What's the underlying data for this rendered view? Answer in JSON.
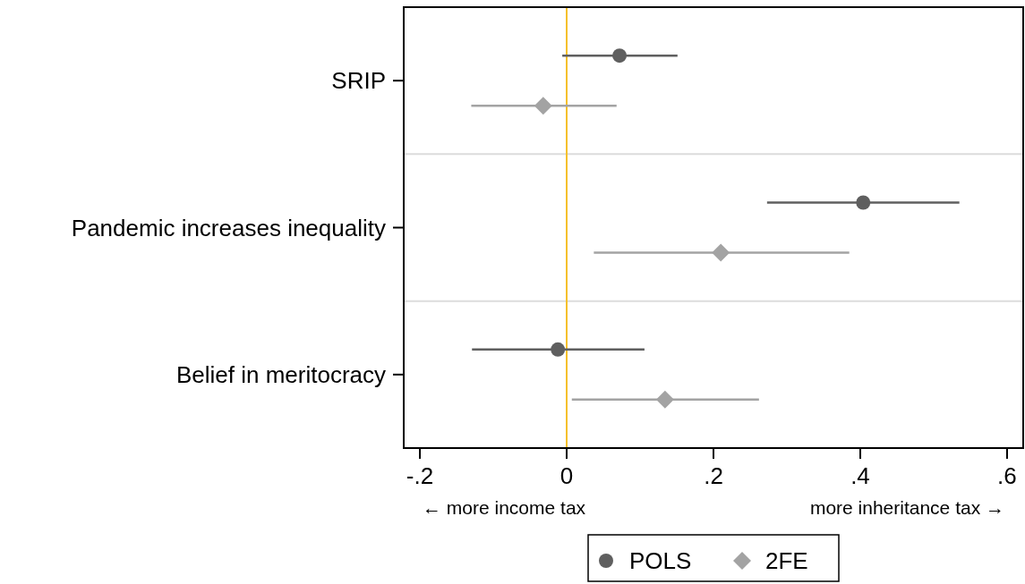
{
  "chart_data": {
    "type": "scatter",
    "orientation": "horizontal",
    "categories": [
      "SRIP",
      "Pandemic increases inequality",
      "Belief in meritocracy"
    ],
    "series": [
      {
        "name": "POLS",
        "color": "#5f5f5f",
        "marker": "circle",
        "values": [
          0.072,
          0.404,
          -0.012
        ],
        "errors": [
          [
            -0.006,
            0.151
          ],
          [
            0.273,
            0.535
          ],
          [
            -0.129,
            0.106
          ]
        ]
      },
      {
        "name": "2FE",
        "color": "#a3a3a3",
        "marker": "diamond",
        "values": [
          -0.032,
          0.21,
          0.134
        ],
        "errors": [
          [
            -0.13,
            0.068
          ],
          [
            0.037,
            0.385
          ],
          [
            0.007,
            0.262
          ]
        ]
      }
    ],
    "xlim": [
      -0.222,
      0.622
    ],
    "xticks": [
      {
        "value": -0.2,
        "label": "-.2"
      },
      0,
      {
        "value": 0.2,
        "label": ".2"
      },
      {
        "value": 0.4,
        "label": ".4"
      },
      {
        "value": 0.6,
        "label": ".6"
      }
    ],
    "ref_lines": [
      {
        "axis": "x",
        "value": 0,
        "color": "#f5c02a"
      }
    ],
    "annotations": [
      "← more income tax",
      "more inheritance tax →"
    ],
    "legend": "bottom"
  }
}
